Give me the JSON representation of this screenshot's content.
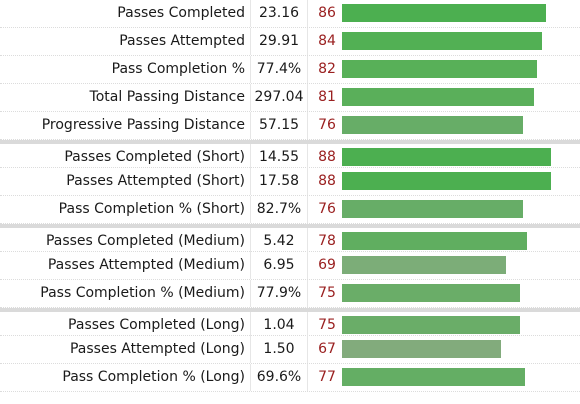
{
  "rows": [
    {
      "label": "Passes Completed",
      "value": "23.16",
      "percentile": 86,
      "bar_color": "#4caf50"
    },
    {
      "label": "Passes Attempted",
      "value": "29.91",
      "percentile": 84,
      "bar_color": "#52b054"
    },
    {
      "label": "Pass Completion %",
      "value": "77.4%",
      "percentile": 82,
      "bar_color": "#58b058"
    },
    {
      "label": "Total Passing Distance",
      "value": "297.04",
      "percentile": 81,
      "bar_color": "#5aaf5a"
    },
    {
      "label": "Progressive Passing Distance",
      "value": "57.15",
      "percentile": 76,
      "bar_color": "#67ad67"
    },
    {
      "label": "Passes Completed (Short)",
      "value": "14.55",
      "percentile": 88,
      "bar_color": "#4caf50"
    },
    {
      "label": "Passes Attempted (Short)",
      "value": "17.58",
      "percentile": 88,
      "bar_color": "#4caf50"
    },
    {
      "label": "Pass Completion % (Short)",
      "value": "82.7%",
      "percentile": 76,
      "bar_color": "#67ad67"
    },
    {
      "label": "Passes Completed (Medium)",
      "value": "5.42",
      "percentile": 78,
      "bar_color": "#60ae60"
    },
    {
      "label": "Passes Attempted (Medium)",
      "value": "6.95",
      "percentile": 69,
      "bar_color": "#7cad78"
    },
    {
      "label": "Pass Completion % (Medium)",
      "value": "77.9%",
      "percentile": 75,
      "bar_color": "#6aad68"
    },
    {
      "label": "Passes Completed (Long)",
      "value": "1.04",
      "percentile": 75,
      "bar_color": "#6aad68"
    },
    {
      "label": "Passes Attempted (Long)",
      "value": "1.50",
      "percentile": 67,
      "bar_color": "#82ab7c"
    },
    {
      "label": "Pass Completion % (Long)",
      "value": "69.6%",
      "percentile": 77,
      "bar_color": "#64ae64"
    }
  ]
}
